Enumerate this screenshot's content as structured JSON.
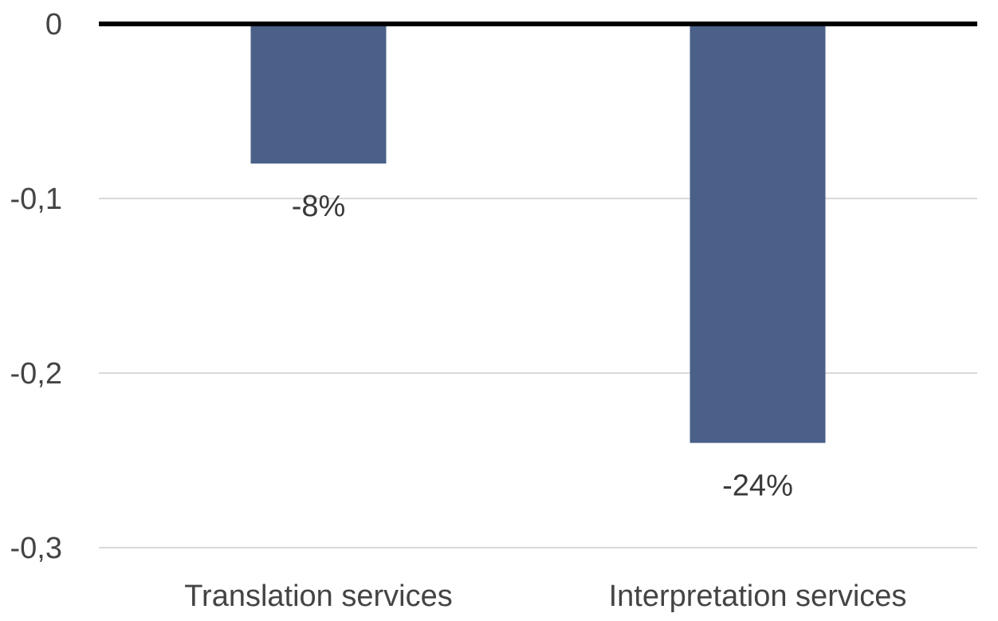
{
  "chart_data": {
    "type": "bar",
    "categories": [
      "Translation services",
      "Interpretation services"
    ],
    "values": [
      -0.08,
      -0.24
    ],
    "data_labels": [
      "-8%",
      "-24%"
    ],
    "y_ticks": [
      0,
      -0.1,
      -0.2,
      -0.3
    ],
    "y_tick_labels": [
      "0",
      "-0,1",
      "-0,2",
      "-0,3"
    ],
    "ylim": [
      -0.3,
      0
    ],
    "grid": true,
    "legend": "none",
    "bar_color": "#4a6089",
    "title": "",
    "xlabel": "",
    "ylabel": ""
  }
}
